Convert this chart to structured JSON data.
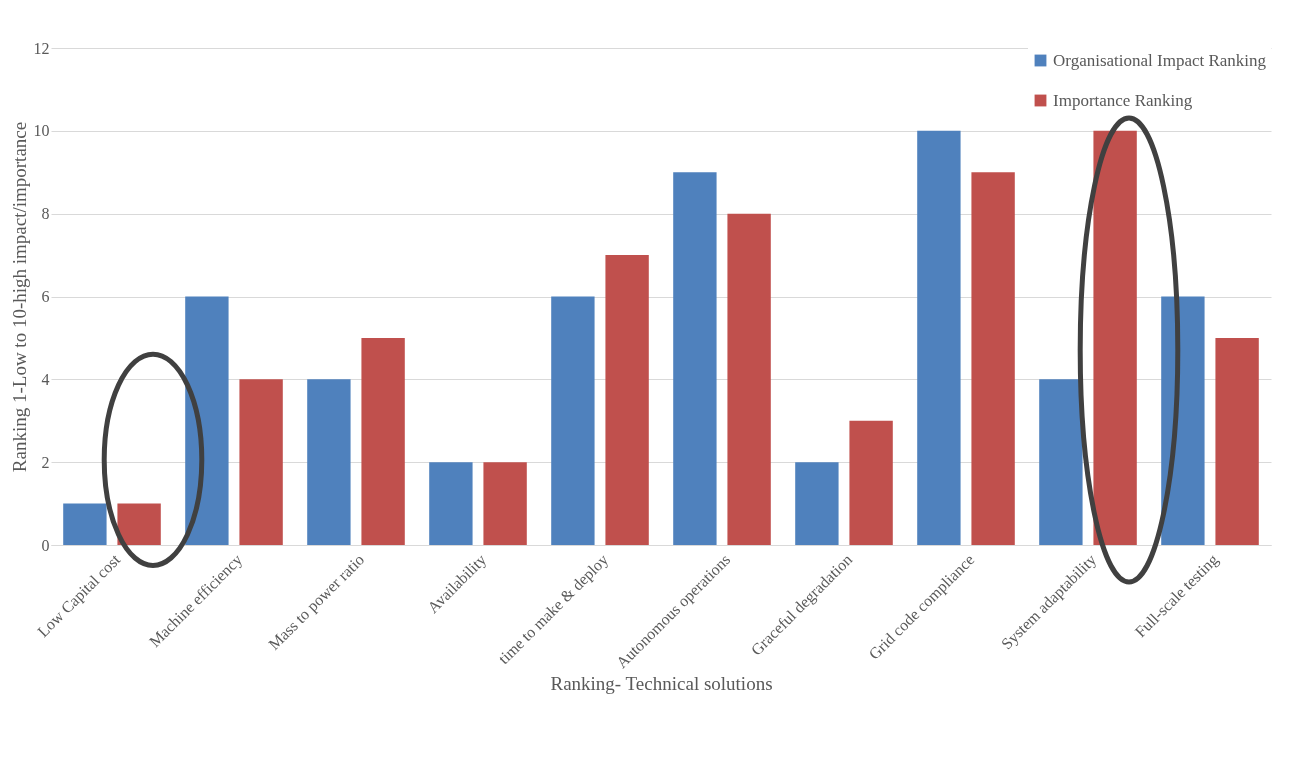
{
  "chart_data": {
    "type": "bar",
    "xlabel": "Ranking- Technical solutions",
    "ylabel": "Ranking  1-Low  to 10-high impact/importance",
    "categories": [
      "Low Capital cost",
      "Machine efficiency",
      "Mass to power ratio",
      "Availability",
      "time to make & deploy",
      "Autonomous operations",
      "Graceful degradation",
      "Grid code compliance",
      "System adaptability",
      "Full-scale testing"
    ],
    "series": [
      {
        "name": "Organisational Impact Ranking",
        "color": "#4f81bd",
        "values": [
          1,
          6,
          4,
          2,
          6,
          9,
          2,
          10,
          4,
          6
        ]
      },
      {
        "name": "Importance Ranking",
        "color": "#c0504d",
        "values": [
          1,
          4,
          5,
          2,
          7,
          8,
          3,
          9,
          10,
          5
        ]
      }
    ],
    "ylim": [
      0,
      12
    ],
    "yticks": [
      0,
      2,
      4,
      6,
      8,
      10,
      12
    ],
    "grid": "y",
    "legend": "top right"
  }
}
